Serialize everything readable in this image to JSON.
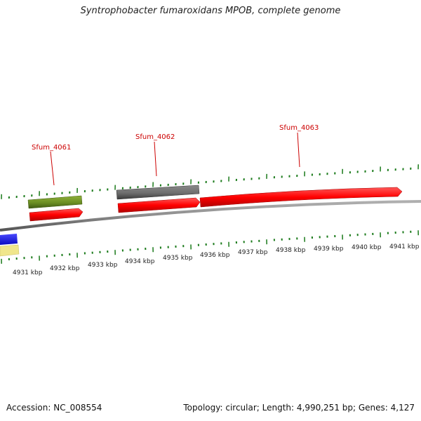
{
  "title": "Syntrophobacter fumaroxidans MPOB, complete genome",
  "footer": {
    "accession": "Accession: NC_008554",
    "summary": "Topology: circular; Length: 4,990,251 bp; Genes: 4,127"
  },
  "colors": {
    "tick": "#1a7a1a",
    "cds_forward": "#ff0000",
    "gene_label": "#cc0000",
    "green_feature": "#6b8e23",
    "gray_feature": "#6e6e6e",
    "backbone": "#8c8c8c",
    "blue_feature": "#1414e6",
    "khaki_feature": "#f0e68c"
  },
  "scale_labels": [
    "4931 kbp",
    "4932 kbp",
    "4933 kbp",
    "4934 kbp",
    "4935 kbp",
    "4936 kbp",
    "4937 kbp",
    "4938 kbp",
    "4939 kbp",
    "4940 kbp",
    "4941 kbp"
  ],
  "gene_labels": [
    "Sfum_4061",
    "Sfum_4062",
    "Sfum_4063"
  ]
}
